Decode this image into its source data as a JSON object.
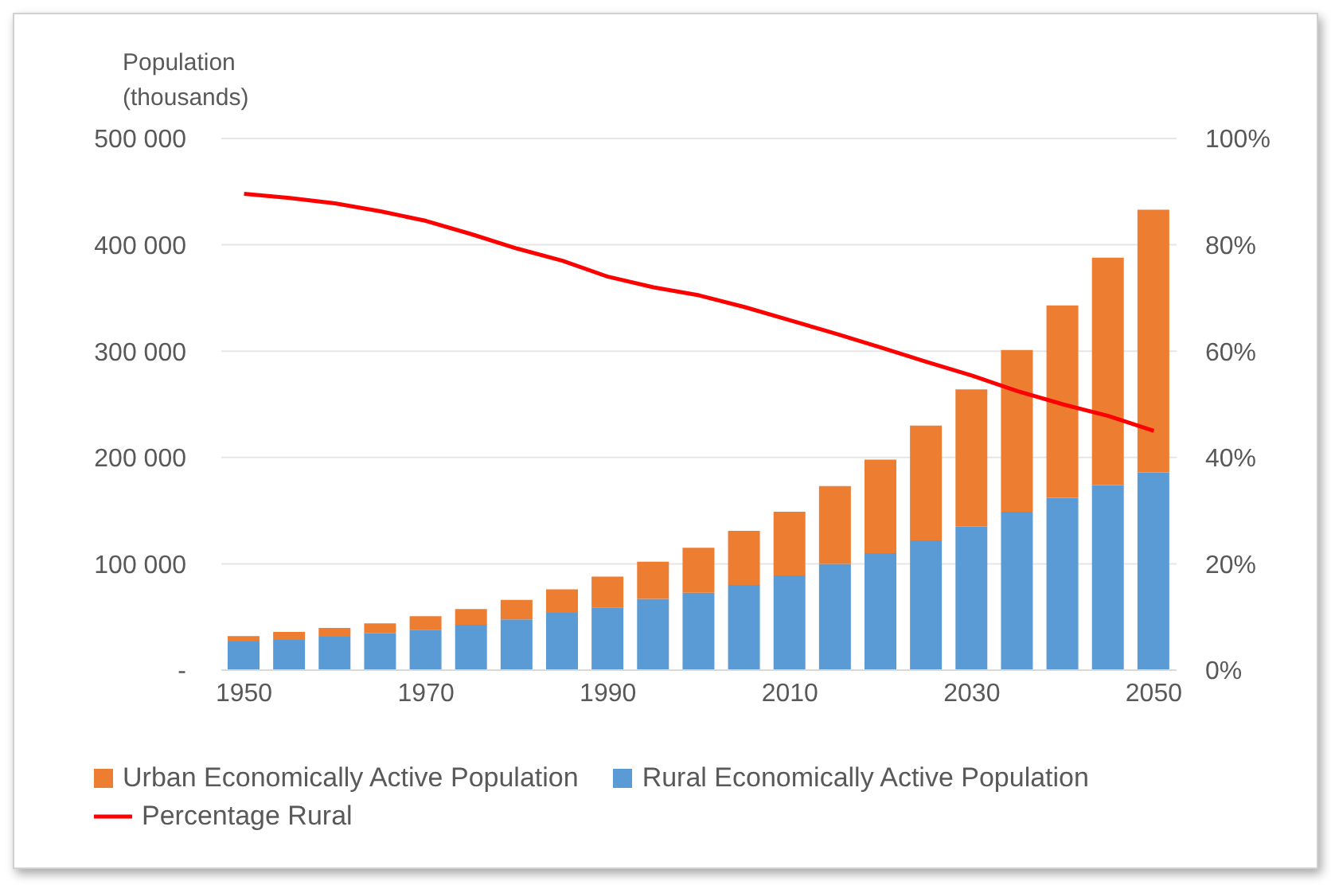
{
  "chart_data": {
    "type": "bar",
    "stacked": true,
    "ylabel": "Population (thousands)",
    "categories": [
      "1950",
      null,
      null,
      null,
      "1970",
      null,
      null,
      null,
      "1990",
      null,
      null,
      null,
      "2010",
      null,
      null,
      null,
      "2030",
      null,
      null,
      null,
      "2050"
    ],
    "series": [
      {
        "name": "Rural Economically Active Population",
        "color": "#5b9bd5",
        "values": [
          27000,
          28500,
          31500,
          34600,
          38000,
          42700,
          47700,
          53800,
          59000,
          67000,
          72700,
          80000,
          89000,
          100000,
          110000,
          122000,
          135000,
          149000,
          162000,
          174000,
          186000
        ]
      },
      {
        "name": "Urban Economically Active Population",
        "color": "#ed7d31",
        "values": [
          5000,
          7500,
          8100,
          9400,
          12800,
          14700,
          18300,
          22200,
          29000,
          35000,
          42300,
          51000,
          60000,
          73000,
          88000,
          108000,
          129000,
          152000,
          181000,
          214000,
          247000
        ]
      },
      {
        "name": "Percentage Rural",
        "type": "line",
        "axis": "y2",
        "color": "#ff0000",
        "marker": "none",
        "values": [
          89.6,
          88.8,
          87.8,
          86.3,
          84.5,
          82,
          79.3,
          77,
          74,
          72,
          70.5,
          68.3,
          65.8,
          63.3,
          60.7,
          58,
          55.4,
          52.5,
          50,
          47.8,
          45
        ]
      }
    ],
    "ylim": [
      0,
      500000
    ],
    "yticks": [
      {
        "value": 0,
        "label": "-"
      },
      {
        "value": 100000,
        "label": "100 000"
      },
      {
        "value": 200000,
        "label": "200 000"
      },
      {
        "value": 300000,
        "label": "300 000"
      },
      {
        "value": 400000,
        "label": "400 000"
      },
      {
        "value": 500000,
        "label": "500 000"
      }
    ],
    "y2lim": [
      0,
      100
    ],
    "y2ticks": [
      {
        "value": 0,
        "label": "0%"
      },
      {
        "value": 20,
        "label": "20%"
      },
      {
        "value": 40,
        "label": "40%"
      },
      {
        "value": 60,
        "label": "60%"
      },
      {
        "value": 80,
        "label": "80%"
      },
      {
        "value": 100,
        "label": "100%"
      }
    ],
    "grid": "y",
    "legend": "bottom"
  }
}
